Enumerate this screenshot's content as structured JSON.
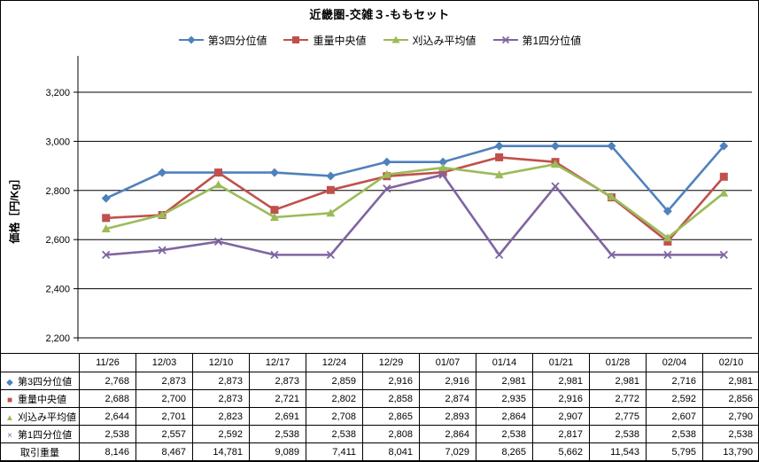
{
  "chart_data": {
    "type": "line",
    "title": "近畿圏-交雑３-ももセット",
    "ylabel": "価格［円/Kg］",
    "xlabel": "",
    "ylim": [
      2200,
      3200
    ],
    "ytick_step": 200,
    "ytick_labels": [
      "2,200",
      "2,400",
      "2,600",
      "2,800",
      "3,000",
      "3,200"
    ],
    "grid": true,
    "legend_position": "top",
    "background": "#FFFFFF",
    "axis_color": "#000000",
    "grid_color": "#000000",
    "categories": [
      "11/26",
      "12/03",
      "12/10",
      "12/17",
      "12/24",
      "12/29",
      "01/07",
      "01/14",
      "01/21",
      "01/28",
      "02/04",
      "02/10"
    ],
    "series": [
      {
        "name": "第3四分位値",
        "marker": "diamond",
        "color": "#4F81BD",
        "values": [
          2768,
          2873,
          2873,
          2873,
          2859,
          2916,
          2916,
          2981,
          2981,
          2981,
          2716,
          2981
        ]
      },
      {
        "name": "重量中央値",
        "marker": "square",
        "color": "#C0504D",
        "values": [
          2688,
          2700,
          2873,
          2721,
          2802,
          2858,
          2874,
          2935,
          2916,
          2772,
          2592,
          2856
        ]
      },
      {
        "name": "刈込み平均値",
        "marker": "triangle",
        "color": "#9BBB59",
        "values": [
          2644,
          2701,
          2823,
          2691,
          2708,
          2865,
          2893,
          2864,
          2907,
          2775,
          2607,
          2790
        ]
      },
      {
        "name": "第1四分位値",
        "marker": "x",
        "color": "#8064A2",
        "values": [
          2538,
          2557,
          2592,
          2538,
          2538,
          2808,
          2864,
          2538,
          2817,
          2538,
          2538,
          2538
        ]
      }
    ]
  },
  "table": {
    "corner_label": "",
    "column_headers": [
      "11/26",
      "12/03",
      "12/10",
      "12/17",
      "12/24",
      "12/29",
      "01/07",
      "01/14",
      "01/21",
      "01/28",
      "02/04",
      "02/10"
    ],
    "rows": [
      {
        "label": "第3四分位値",
        "marker": "diamond",
        "marker_color": "#4F81BD",
        "values": [
          "2,768",
          "2,873",
          "2,873",
          "2,873",
          "2,859",
          "2,916",
          "2,916",
          "2,981",
          "2,981",
          "2,981",
          "2,716",
          "2,981"
        ]
      },
      {
        "label": "重量中央値",
        "marker": "square",
        "marker_color": "#C0504D",
        "values": [
          "2,688",
          "2,700",
          "2,873",
          "2,721",
          "2,802",
          "2,858",
          "2,874",
          "2,935",
          "2,916",
          "2,772",
          "2,592",
          "2,856"
        ]
      },
      {
        "label": "刈込み平均値",
        "marker": "triangle",
        "marker_color": "#9BBB59",
        "values": [
          "2,644",
          "2,701",
          "2,823",
          "2,691",
          "2,708",
          "2,865",
          "2,893",
          "2,864",
          "2,907",
          "2,775",
          "2,607",
          "2,790"
        ]
      },
      {
        "label": "第1四分位値",
        "marker": "x",
        "marker_color": "#8064A2",
        "values": [
          "2,538",
          "2,557",
          "2,592",
          "2,538",
          "2,538",
          "2,808",
          "2,864",
          "2,538",
          "2,817",
          "2,538",
          "2,538",
          "2,538"
        ]
      },
      {
        "label": "取引重量",
        "marker": null,
        "marker_color": null,
        "values": [
          "8,146",
          "8,467",
          "14,781",
          "9,089",
          "7,411",
          "8,041",
          "7,029",
          "8,265",
          "5,662",
          "11,543",
          "5,795",
          "13,790"
        ]
      }
    ]
  }
}
